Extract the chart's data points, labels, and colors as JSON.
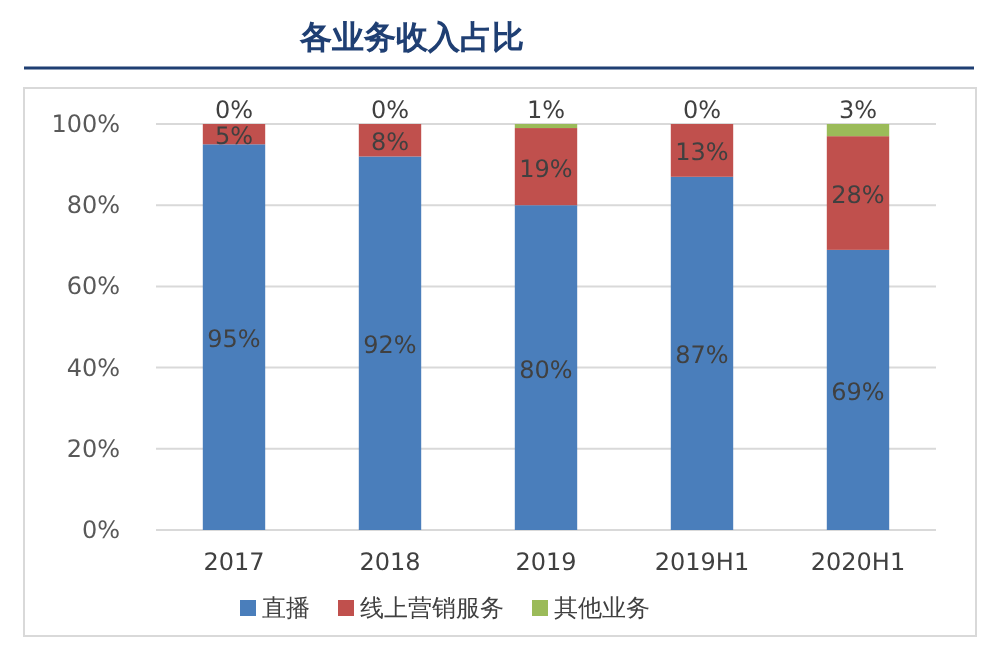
{
  "chart_data": {
    "type": "bar",
    "title": "各业务收入占比",
    "categories": [
      "2017",
      "2018",
      "2019",
      "2019H1",
      "2020H1"
    ],
    "series": [
      {
        "name": "直播",
        "color": "#4a7ebb",
        "values": [
          95,
          92,
          80,
          87,
          69
        ],
        "value_labels": [
          "95%",
          "92%",
          "80%",
          "87%",
          "69%"
        ]
      },
      {
        "name": "线上营销服务",
        "color": "#c0504d",
        "values": [
          5,
          8,
          19,
          13,
          28
        ],
        "value_labels": [
          "5%",
          "8%",
          "19%",
          "13%",
          "28%"
        ]
      },
      {
        "name": "其他业务",
        "color": "#9bbb59",
        "values": [
          0,
          0,
          1,
          0,
          3
        ],
        "value_labels": [
          "0%",
          "0%",
          "1%",
          "0%",
          "3%"
        ]
      }
    ],
    "stacked": true,
    "ylim": [
      0,
      100
    ],
    "yticks": [
      {
        "value": 0,
        "label": "0%"
      },
      {
        "value": 20,
        "label": "20%"
      },
      {
        "value": 40,
        "label": "40%"
      },
      {
        "value": 60,
        "label": "60%"
      },
      {
        "value": 80,
        "label": "80%"
      },
      {
        "value": 100,
        "label": "100%"
      }
    ],
    "grid": "y",
    "legend": "bottom"
  }
}
